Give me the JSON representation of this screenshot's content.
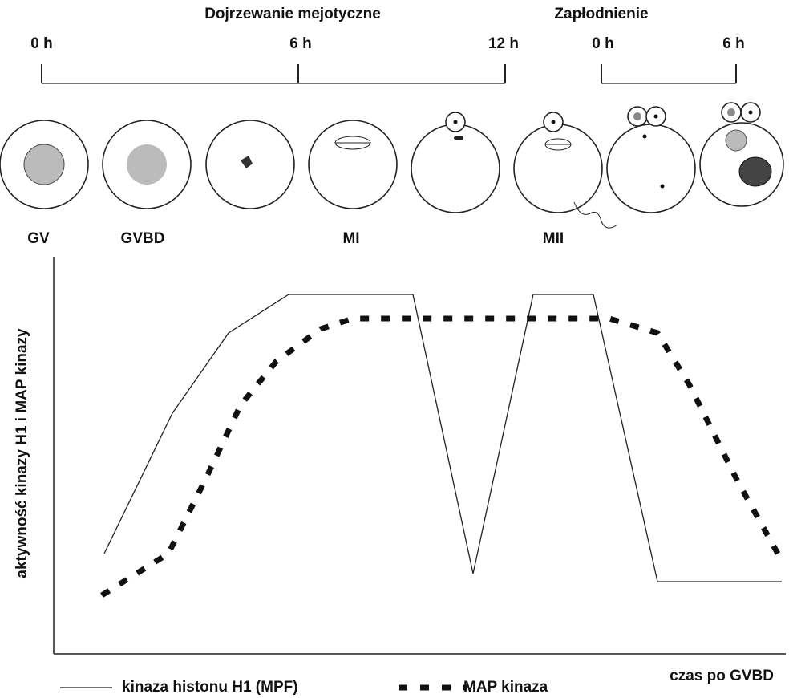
{
  "header": {
    "titles": [
      "Dojrzewanie mejotyczne",
      "Zapłodnienie"
    ],
    "times": [
      "0 h",
      "6 h",
      "12 h",
      "0 h",
      "6 h"
    ]
  },
  "stages": [
    "GV",
    "GVBD",
    "MI",
    "MII"
  ],
  "axis": {
    "y_label": "aktywność kinazy H1 i MAP kinazy",
    "x_label": "czas po GVBD"
  },
  "legend": [
    "kinaza histonu H1 (MPF)",
    "MAP kinaza"
  ]
}
